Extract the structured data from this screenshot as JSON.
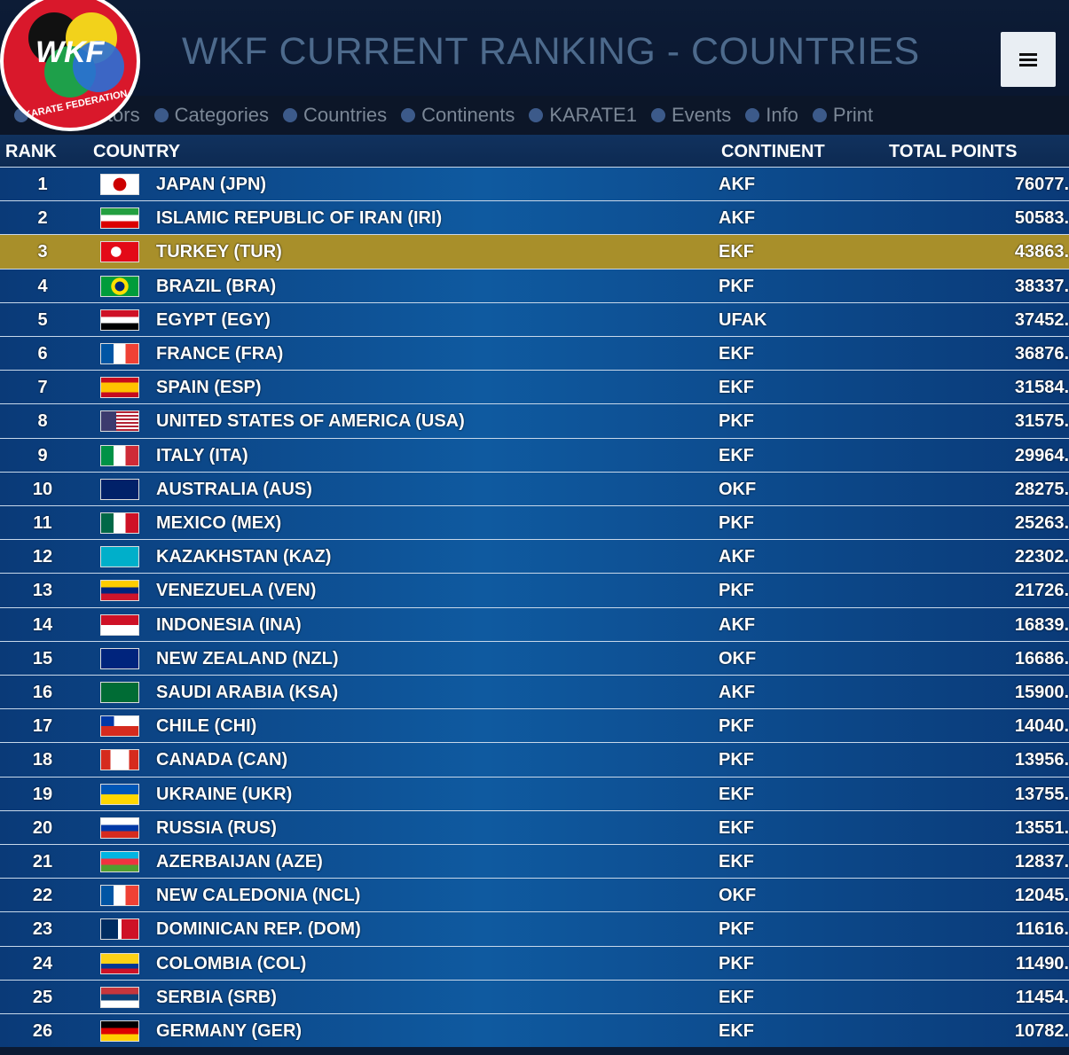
{
  "header": {
    "logo": "WKF",
    "logo_ring": "KARATE FEDERATION",
    "title": "WKF CURRENT RANKING - COUNTRIES"
  },
  "nav": [
    "Competitors",
    "Categories",
    "Countries",
    "Continents",
    "KARATE1",
    "Events",
    "Info",
    "Print"
  ],
  "table": {
    "columns": [
      "RANK",
      "COUNTRY",
      "CONTINENT",
      "TOTAL POINTS"
    ],
    "highlight_row": 2,
    "rows": [
      [
        1,
        "JAPAN (JPN)",
        "AKF",
        "76077."
      ],
      [
        2,
        "ISLAMIC REPUBLIC OF IRAN (IRI)",
        "AKF",
        "50583."
      ],
      [
        3,
        "TURKEY (TUR)",
        "EKF",
        "43863."
      ],
      [
        4,
        "BRAZIL (BRA)",
        "PKF",
        "38337."
      ],
      [
        5,
        "EGYPT (EGY)",
        "UFAK",
        "37452."
      ],
      [
        6,
        "FRANCE (FRA)",
        "EKF",
        "36876."
      ],
      [
        7,
        "SPAIN (ESP)",
        "EKF",
        "31584."
      ],
      [
        8,
        "UNITED STATES OF AMERICA (USA)",
        "PKF",
        "31575."
      ],
      [
        9,
        "ITALY (ITA)",
        "EKF",
        "29964."
      ],
      [
        10,
        "AUSTRALIA (AUS)",
        "OKF",
        "28275."
      ],
      [
        11,
        "MEXICO (MEX)",
        "PKF",
        "25263."
      ],
      [
        12,
        "KAZAKHSTAN (KAZ)",
        "AKF",
        "22302."
      ],
      [
        13,
        "VENEZUELA (VEN)",
        "PKF",
        "21726."
      ],
      [
        14,
        "INDONESIA (INA)",
        "AKF",
        "16839."
      ],
      [
        15,
        "NEW ZEALAND (NZL)",
        "OKF",
        "16686."
      ],
      [
        16,
        "SAUDI ARABIA (KSA)",
        "AKF",
        "15900."
      ],
      [
        17,
        "CHILE (CHI)",
        "PKF",
        "14040."
      ],
      [
        18,
        "CANADA (CAN)",
        "PKF",
        "13956."
      ],
      [
        19,
        "UKRAINE (UKR)",
        "EKF",
        "13755."
      ],
      [
        20,
        "RUSSIA (RUS)",
        "EKF",
        "13551."
      ],
      [
        21,
        "AZERBAIJAN (AZE)",
        "EKF",
        "12837."
      ],
      [
        22,
        "NEW CALEDONIA (NCL)",
        "OKF",
        "12045."
      ],
      [
        23,
        "DOMINICAN REP. (DOM)",
        "PKF",
        "11616."
      ],
      [
        24,
        "COLOMBIA (COL)",
        "PKF",
        "11490."
      ],
      [
        25,
        "SERBIA (SRB)",
        "EKF",
        "11454."
      ],
      [
        26,
        "GERMANY (GER)",
        "EKF",
        "10782."
      ]
    ]
  }
}
